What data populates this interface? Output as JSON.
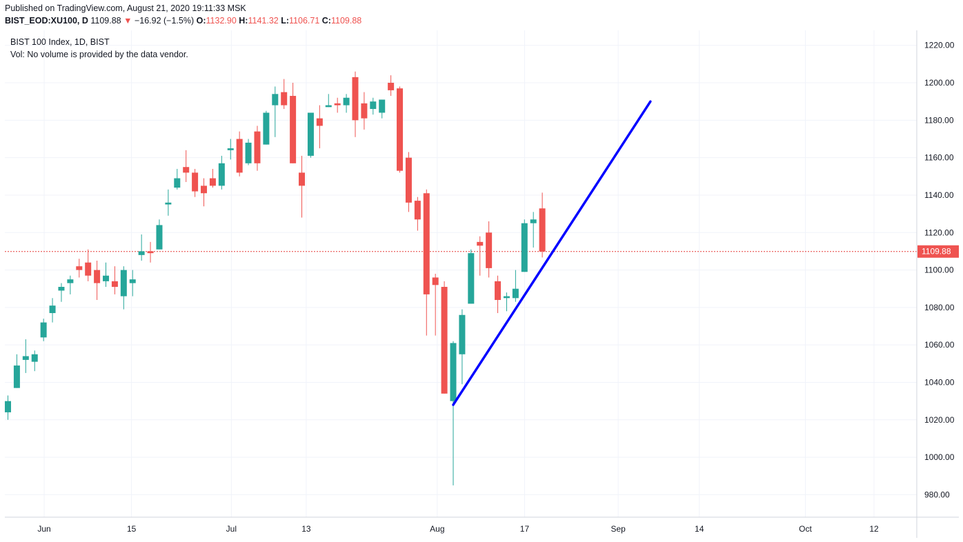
{
  "header": {
    "published": "Published on TradingView.com, August 21, 2020 19:11:33 MSK",
    "symbol": "BIST_EOD:XU100, D",
    "last": "1109.88",
    "arrow": "▼",
    "change": "−16.92 (−1.5%)",
    "o_label": "O:",
    "o_value": "1132.90",
    "h_label": "H:",
    "h_value": "1141.32",
    "l_label": "L:",
    "l_value": "1106.71",
    "c_label": "C:",
    "c_value": "1109.88"
  },
  "legend": {
    "title": "BIST 100 Index, 1D, BIST",
    "volume_note": "Vol: No volume is provided by the data vendor."
  },
  "colors": {
    "up": "#26a69a",
    "down": "#ef5350",
    "trendline": "#0000ff",
    "price_line": "#e53935",
    "grid": "#f0f3fa",
    "axis_text": "#131722"
  },
  "chart_data": {
    "type": "candlestick",
    "title": "BIST 100 Index, 1D, BIST",
    "ylim": [
      968,
      1228
    ],
    "y_ticks": [
      980,
      1000,
      1020,
      1040,
      1060,
      1080,
      1100,
      1120,
      1140,
      1160,
      1180,
      1200,
      1220
    ],
    "x_tick_labels": [
      "Jun",
      "15",
      "Jul",
      "13",
      "Aug",
      "17",
      "Sep",
      "14",
      "Oct",
      "12"
    ],
    "x_tick_dates": [
      "2020-06-01",
      "2020-06-15",
      "2020-07-01",
      "2020-07-13",
      "2020-08-03",
      "2020-08-17",
      "2020-09-01",
      "2020-09-14",
      "2020-10-01",
      "2020-10-12"
    ],
    "last_price": 1109.88,
    "last_price_label": "1109.88",
    "candles": [
      {
        "date": "2020-05-28",
        "o": 1024,
        "h": 1033,
        "l": 1020,
        "c": 1030
      },
      {
        "date": "2020-05-29",
        "o": 1037,
        "h": 1055,
        "l": 1037,
        "c": 1049
      },
      {
        "date": "2020-06-01",
        "o": 1052,
        "h": 1063,
        "l": 1045,
        "c": 1054
      },
      {
        "date": "2020-06-02",
        "o": 1051,
        "h": 1057,
        "l": 1046,
        "c": 1055
      },
      {
        "date": "2020-06-03",
        "o": 1064,
        "h": 1074,
        "l": 1062,
        "c": 1072
      },
      {
        "date": "2020-06-04",
        "o": 1077,
        "h": 1085,
        "l": 1072,
        "c": 1081
      },
      {
        "date": "2020-06-05",
        "o": 1089,
        "h": 1093,
        "l": 1083,
        "c": 1091
      },
      {
        "date": "2020-06-08",
        "o": 1093,
        "h": 1097,
        "l": 1087,
        "c": 1095
      },
      {
        "date": "2020-06-09",
        "o": 1102,
        "h": 1106,
        "l": 1096,
        "c": 1100
      },
      {
        "date": "2020-06-10",
        "o": 1104,
        "h": 1111,
        "l": 1094,
        "c": 1097
      },
      {
        "date": "2020-06-11",
        "o": 1100,
        "h": 1105,
        "l": 1084,
        "c": 1093
      },
      {
        "date": "2020-06-12",
        "o": 1094,
        "h": 1104,
        "l": 1091,
        "c": 1097
      },
      {
        "date": "2020-06-15",
        "o": 1094,
        "h": 1102,
        "l": 1087,
        "c": 1091
      },
      {
        "date": "2020-06-16",
        "o": 1086,
        "h": 1102,
        "l": 1079,
        "c": 1100
      },
      {
        "date": "2020-06-17",
        "o": 1093,
        "h": 1100,
        "l": 1086,
        "c": 1095
      },
      {
        "date": "2020-06-18",
        "o": 1108,
        "h": 1119,
        "l": 1105,
        "c": 1110
      },
      {
        "date": "2020-06-19",
        "o": 1110,
        "h": 1115,
        "l": 1104,
        "c": 1109
      },
      {
        "date": "2020-06-22",
        "o": 1111,
        "h": 1127,
        "l": 1111,
        "c": 1124
      },
      {
        "date": "2020-06-23",
        "o": 1135,
        "h": 1143,
        "l": 1129,
        "c": 1136
      },
      {
        "date": "2020-06-24",
        "o": 1144,
        "h": 1154,
        "l": 1143,
        "c": 1149
      },
      {
        "date": "2020-06-25",
        "o": 1155,
        "h": 1164,
        "l": 1147,
        "c": 1152
      },
      {
        "date": "2020-06-26",
        "o": 1152,
        "h": 1154,
        "l": 1139,
        "c": 1142
      },
      {
        "date": "2020-06-29",
        "o": 1145,
        "h": 1149,
        "l": 1134,
        "c": 1141
      },
      {
        "date": "2020-06-30",
        "o": 1149,
        "h": 1154,
        "l": 1144,
        "c": 1145
      },
      {
        "date": "2020-07-01",
        "o": 1145,
        "h": 1161,
        "l": 1143,
        "c": 1157
      },
      {
        "date": "2020-07-02",
        "o": 1164,
        "h": 1170,
        "l": 1159,
        "c": 1165
      },
      {
        "date": "2020-07-03",
        "o": 1170,
        "h": 1174,
        "l": 1150,
        "c": 1152
      },
      {
        "date": "2020-07-06",
        "o": 1157,
        "h": 1170,
        "l": 1156,
        "c": 1168
      },
      {
        "date": "2020-07-07",
        "o": 1174,
        "h": 1177,
        "l": 1153,
        "c": 1157
      },
      {
        "date": "2020-07-08",
        "o": 1167,
        "h": 1185,
        "l": 1167,
        "c": 1184
      },
      {
        "date": "2020-07-09",
        "o": 1188,
        "h": 1198,
        "l": 1171,
        "c": 1194
      },
      {
        "date": "2020-07-10",
        "o": 1195,
        "h": 1202,
        "l": 1186,
        "c": 1188
      },
      {
        "date": "2020-07-13",
        "o": 1193,
        "h": 1200,
        "l": 1157,
        "c": 1157
      },
      {
        "date": "2020-07-14",
        "o": 1152,
        "h": 1161,
        "l": 1128,
        "c": 1145
      },
      {
        "date": "2020-07-15",
        "o": 1161,
        "h": 1183,
        "l": 1160,
        "c": 1184
      },
      {
        "date": "2020-07-16",
        "o": 1181,
        "h": 1188,
        "l": 1165,
        "c": 1177
      },
      {
        "date": "2020-07-17",
        "o": 1187,
        "h": 1194,
        "l": 1187,
        "c": 1188
      },
      {
        "date": "2020-07-20",
        "o": 1189,
        "h": 1192,
        "l": 1184,
        "c": 1188
      },
      {
        "date": "2020-07-21",
        "o": 1188,
        "h": 1194,
        "l": 1184,
        "c": 1192
      },
      {
        "date": "2020-07-22",
        "o": 1203,
        "h": 1206,
        "l": 1171,
        "c": 1180
      },
      {
        "date": "2020-07-23",
        "o": 1189,
        "h": 1195,
        "l": 1175,
        "c": 1181
      },
      {
        "date": "2020-07-24",
        "o": 1186,
        "h": 1192,
        "l": 1183,
        "c": 1190
      },
      {
        "date": "2020-07-27",
        "o": 1184,
        "h": 1191,
        "l": 1181,
        "c": 1191
      },
      {
        "date": "2020-07-28",
        "o": 1200,
        "h": 1204,
        "l": 1193,
        "c": 1196
      },
      {
        "date": "2020-07-29",
        "o": 1197,
        "h": 1198,
        "l": 1152,
        "c": 1153
      },
      {
        "date": "2020-08-03",
        "o": 1160,
        "h": 1163,
        "l": 1131,
        "c": 1136
      },
      {
        "date": "2020-08-04",
        "o": 1137,
        "h": 1139,
        "l": 1121,
        "c": 1127
      },
      {
        "date": "2020-08-05",
        "o": 1141,
        "h": 1143,
        "l": 1065,
        "c": 1087
      },
      {
        "date": "2020-08-06",
        "o": 1096,
        "h": 1098,
        "l": 1065,
        "c": 1092
      },
      {
        "date": "2020-08-07",
        "o": 1091,
        "h": 1094,
        "l": 1034,
        "c": 1034
      },
      {
        "date": "2020-08-10",
        "o": 1030,
        "h": 1062,
        "l": 985,
        "c": 1061
      },
      {
        "date": "2020-08-11",
        "o": 1055,
        "h": 1079,
        "l": 1039,
        "c": 1076
      },
      {
        "date": "2020-08-12",
        "o": 1082,
        "h": 1111,
        "l": 1082,
        "c": 1109
      },
      {
        "date": "2020-08-13",
        "o": 1115,
        "h": 1118,
        "l": 1097,
        "c": 1113
      },
      {
        "date": "2020-08-14",
        "o": 1120,
        "h": 1126,
        "l": 1096,
        "c": 1101
      },
      {
        "date": "2020-08-17",
        "o": 1094,
        "h": 1097,
        "l": 1077,
        "c": 1084
      },
      {
        "date": "2020-08-18",
        "o": 1085,
        "h": 1088,
        "l": 1078,
        "c": 1086
      },
      {
        "date": "2020-08-19",
        "o": 1085,
        "h": 1100,
        "l": 1083,
        "c": 1090
      },
      {
        "date": "2020-08-20",
        "o": 1099,
        "h": 1127,
        "l": 1099,
        "c": 1125
      },
      {
        "date": "2020-08-21a",
        "o": 1125,
        "h": 1131,
        "l": 1112,
        "c": 1127
      },
      {
        "date": "2020-08-21",
        "o": 1132.9,
        "h": 1141.32,
        "l": 1106.71,
        "c": 1109.88
      }
    ],
    "trendline": {
      "start": {
        "date": "2020-08-10",
        "value": 1028
      },
      "end": {
        "date": "2020-09-07",
        "value": 1190
      }
    }
  }
}
